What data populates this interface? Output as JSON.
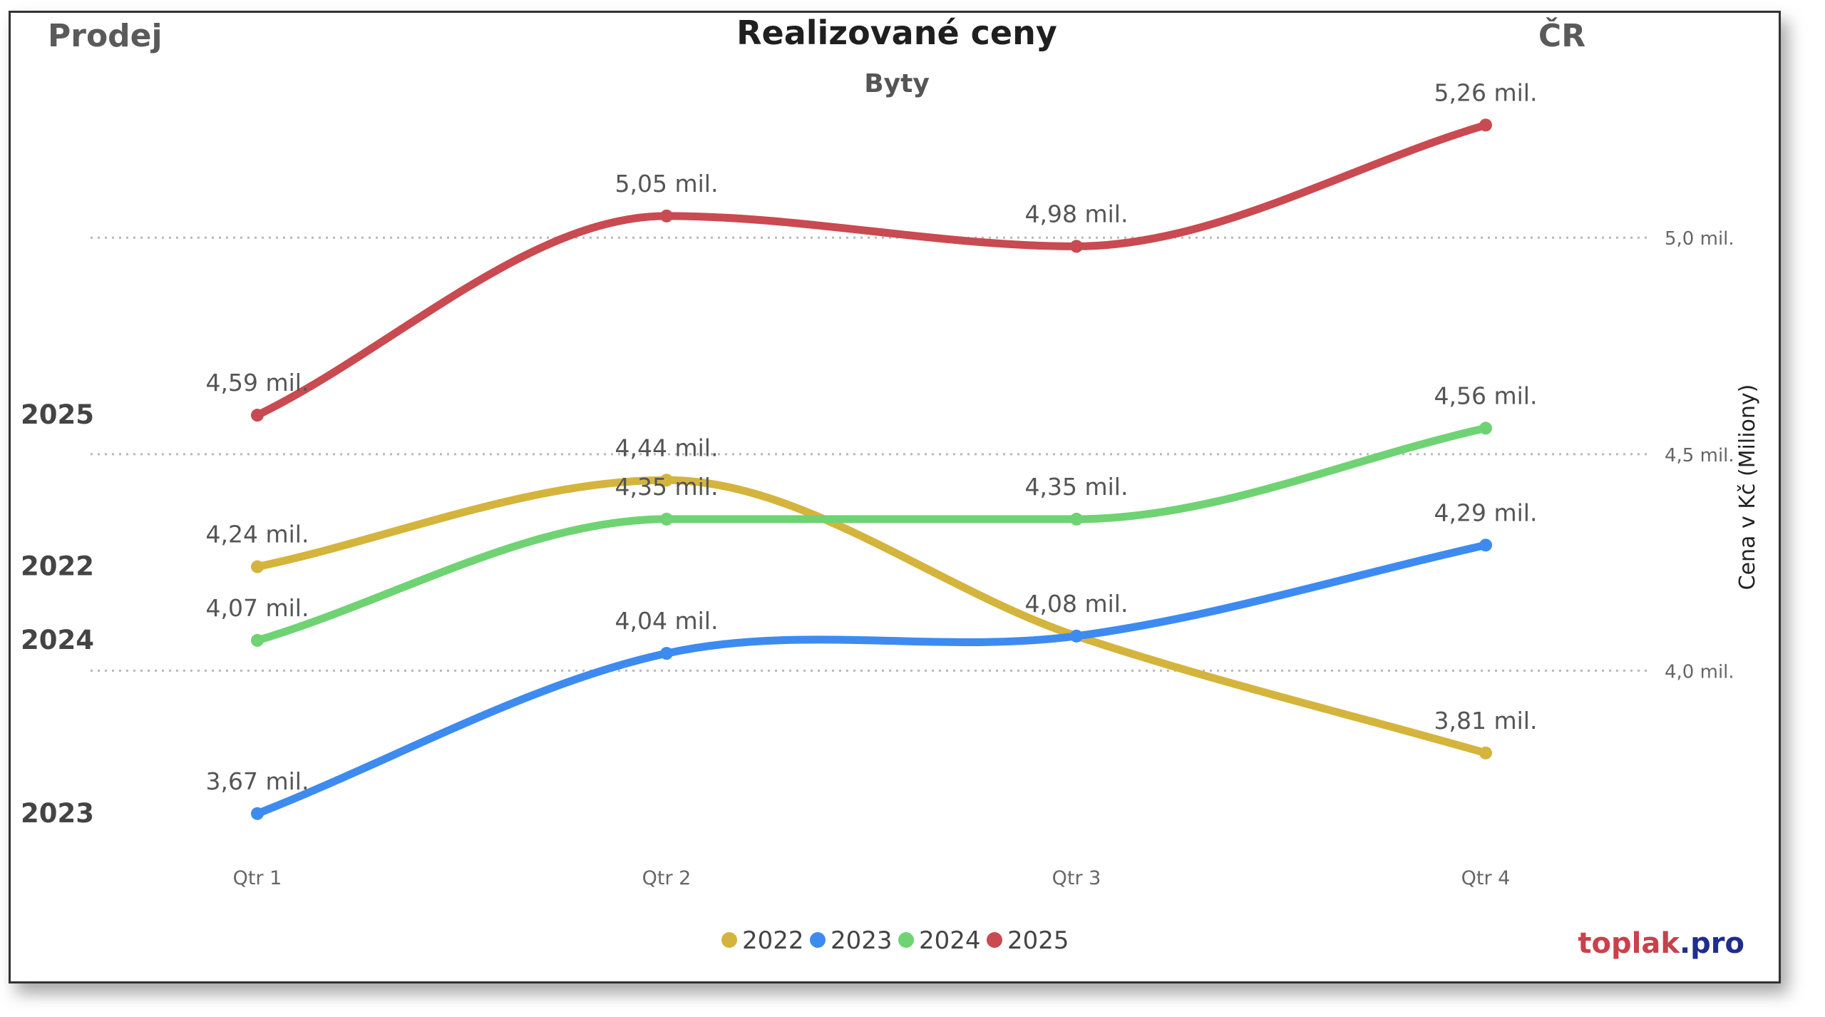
{
  "header": {
    "left": "Prodej",
    "title": "Realizované ceny",
    "subtitle": "Byty",
    "right": "ČR"
  },
  "brand": {
    "part1": "toplak",
    "part2": ".pro",
    "color1": "#c9414b",
    "color2": "#1f2d8c"
  },
  "chart_data": {
    "type": "line",
    "categories": [
      "Qtr 1",
      "Qtr 2",
      "Qtr 3",
      "Qtr 4"
    ],
    "ylabel": "Cena v Kč (Miliony)",
    "ylim": [
      3.5,
      5.45
    ],
    "y_axis_position": "right",
    "yticks": [
      {
        "value": 4.0,
        "label": "4,0 mil."
      },
      {
        "value": 4.5,
        "label": "4,5 mil."
      },
      {
        "value": 5.0,
        "label": "5,0 mil."
      }
    ],
    "grid": "dotted horizontal",
    "legend_position": "bottom-center",
    "series": [
      {
        "name": "2022",
        "color": "#d4b43c",
        "values": [
          4.24,
          4.44,
          4.08,
          3.81
        ],
        "labels": [
          "4,24 mil.",
          "4,44 mil.",
          "",
          "3,81 mil."
        ]
      },
      {
        "name": "2023",
        "color": "#3d8bf0",
        "values": [
          3.67,
          4.04,
          4.08,
          4.29
        ],
        "labels": [
          "3,67 mil.",
          "4,04 mil.",
          "4,08 mil.",
          "4,29 mil."
        ]
      },
      {
        "name": "2024",
        "color": "#6fd373",
        "values": [
          4.07,
          4.35,
          4.35,
          4.56
        ],
        "labels": [
          "4,07 mil.",
          "4,35 mil.",
          "4,35 mil.",
          "4,56 mil."
        ]
      },
      {
        "name": "2025",
        "color": "#c94a50",
        "values": [
          4.59,
          5.05,
          4.98,
          5.26
        ],
        "labels": [
          "4,59 mil.",
          "5,05 mil.",
          "4,98 mil.",
          "5,26 mil."
        ]
      }
    ],
    "end_labels_left": [
      "2025",
      "2022",
      "2024",
      "2023"
    ]
  }
}
